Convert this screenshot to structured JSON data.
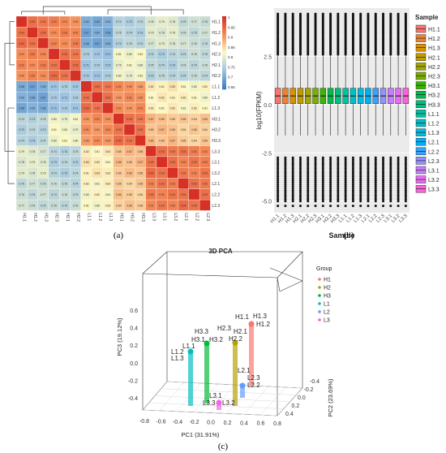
{
  "panel_labels": [
    "(a)",
    "(b)",
    "(c)"
  ],
  "chart_data": [
    {
      "type": "heatmap",
      "samples": [
        "H1.1",
        "H1.2",
        "H1.3",
        "H2.1",
        "H2.2",
        "H2.3",
        "H3.1",
        "H3.2",
        "H3.3",
        "L1.1",
        "L1.2",
        "L1.3",
        "L2.1",
        "L2.2",
        "L2.3",
        "L3.1",
        "L3.2",
        "L3.3"
      ],
      "row_order": [
        "H1.1",
        "H1.2",
        "H1.3",
        "H2.3",
        "H2.1",
        "H2.2",
        "L1.1",
        "L1.2",
        "L1.3",
        "H3.1",
        "H3.2",
        "H3.3",
        "L3.3",
        "L3.1",
        "L3.2",
        "L2.1",
        "L2.2",
        "L2.3"
      ],
      "col_order": [
        "H1.1",
        "H1.2",
        "H1.3",
        "H2.3",
        "H2.1",
        "H2.2",
        "L1.1",
        "L1.2",
        "L1.3",
        "H3.1",
        "H3.2",
        "H3.3",
        "L3.3",
        "L3.1",
        "L3.2",
        "L2.1",
        "L2.2",
        "L2.3"
      ],
      "colorbar": {
        "ticks": [
          "1",
          "0.95",
          "0.9",
          "0.85",
          "0.8",
          "0.75",
          "0.7",
          "0.65"
        ],
        "min": 0.62,
        "max": 1.0,
        "colors": [
          "#3b7dc0",
          "#9ec4e2",
          "#fbf8c4",
          "#f58d58",
          "#d73027"
        ]
      },
      "within_block": 0.93,
      "within_group": [
        [
          0.93,
          0.93,
          0.93
        ],
        [
          0.93,
          0.93,
          0.93
        ]
      ],
      "groups": [
        "H1",
        "H2",
        "L1",
        "H3",
        "L3",
        "L2"
      ],
      "group_corr": [
        [
          0.99,
          0.91,
          0.68,
          0.74,
          0.78,
          0.76
        ],
        [
          0.91,
          0.99,
          0.72,
          0.8,
          0.74,
          0.75
        ],
        [
          0.68,
          0.72,
          0.99,
          0.9,
          0.82,
          0.81
        ],
        [
          0.74,
          0.8,
          0.9,
          0.99,
          0.86,
          0.85
        ],
        [
          0.78,
          0.74,
          0.82,
          0.86,
          0.99,
          0.92
        ],
        [
          0.76,
          0.75,
          0.81,
          0.85,
          0.92,
          0.99
        ]
      ]
    },
    {
      "type": "box",
      "title": "",
      "xlabel": "Sample",
      "ylabel": "log10(FPKM)",
      "legend_title": "Sample",
      "legend_position": "right",
      "ylim": [
        -5.6,
        5.0
      ],
      "yticks": [
        "-5.0",
        "-2.5",
        "0.0",
        "2.5"
      ],
      "ytick_values": [
        -5.0,
        -2.5,
        0.0,
        2.5
      ],
      "categories": [
        "H1.1",
        "H1.2",
        "H1.3",
        "H2.1",
        "H2.2",
        "H2.3",
        "H3.1",
        "H3.2",
        "H3.3",
        "L1.1",
        "L1.2",
        "L1.3",
        "L2.1",
        "L2.2",
        "L2.3",
        "L3.1",
        "L3.2",
        "L3.3"
      ],
      "colors": [
        "#f8766d",
        "#ea8331",
        "#d89000",
        "#c09b00",
        "#a3a500",
        "#7cae00",
        "#39b600",
        "#00bb4e",
        "#00bf7d",
        "#00c1a3",
        "#00bfc4",
        "#00bae0",
        "#00b0f6",
        "#35a2ff",
        "#9590ff",
        "#c77cff",
        "#e76bf3",
        "#fa62db"
      ],
      "q1": 0.05,
      "median": 0.45,
      "q3": 0.85,
      "whisker_low": -1.6,
      "whisker_high": 2.6,
      "outlier_low": [
        -5.0,
        -2.75
      ],
      "outlier_high": [
        2.6,
        4.7
      ]
    },
    {
      "type": "scatter3d",
      "title": "3D PCA",
      "xlabel": "PC1 (31.91%)",
      "ylabel": "PC2 (23.69%)",
      "zlabel": "PC3 (19.12%)",
      "legend_title": "Group",
      "xticks": [
        "-0.8",
        "-0.6",
        "-0.4",
        "-0.2",
        "0.0",
        "0.2",
        "0.4",
        "0.6",
        "0.8"
      ],
      "yticks": [
        "-0.4",
        "-0.2",
        "0.0",
        "0.2",
        "0.4"
      ],
      "zticks": [
        "-0.4",
        "-0.2",
        "0.0",
        "0.2",
        "0.4",
        "0.6"
      ],
      "groups": [
        {
          "name": "H1",
          "color": "#f8766d",
          "labels": [
            "H1.1",
            "H1.3",
            "H1.2"
          ]
        },
        {
          "name": "H2",
          "color": "#b79f00",
          "labels": [
            "H2.3",
            "H2.1",
            "H2.2"
          ]
        },
        {
          "name": "H3",
          "color": "#00ba38",
          "labels": [
            "H3.3",
            "H3.1",
            "H3.2"
          ]
        },
        {
          "name": "L1",
          "color": "#00bfc4",
          "labels": [
            "L1.1",
            "L1.2",
            "L1.3"
          ]
        },
        {
          "name": "L2",
          "color": "#619cff",
          "labels": [
            "L2.1",
            "L2.3",
            "L2.2"
          ]
        },
        {
          "name": "L3",
          "color": "#f564e3",
          "labels": [
            "L3.1",
            "L3.3",
            "L3.2"
          ]
        }
      ]
    }
  ]
}
